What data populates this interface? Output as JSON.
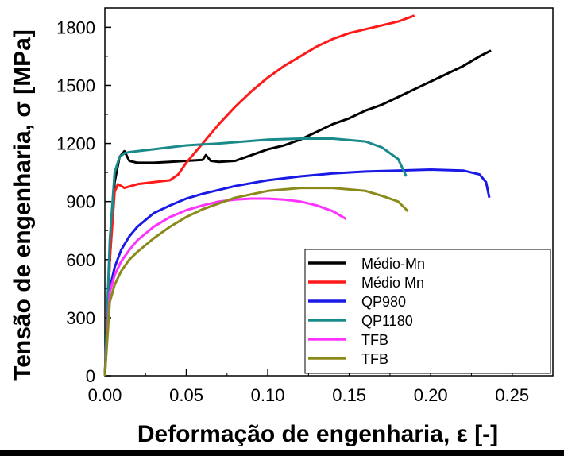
{
  "chart_data": {
    "type": "line",
    "title": "",
    "xlabel": "Deformação de engenharia, ε [-]",
    "ylabel": "Tensão de engenharia, σ [MPa]",
    "xlim": [
      0,
      0.275
    ],
    "ylim": [
      0,
      1900
    ],
    "xticks": [
      0.0,
      0.05,
      0.1,
      0.15,
      0.2,
      0.25
    ],
    "xtick_labels": [
      "0.00",
      "0.05",
      "0.10",
      "0.15",
      "0.20",
      "0.25"
    ],
    "yticks": [
      0,
      300,
      600,
      900,
      1200,
      1500,
      1800
    ],
    "ytick_labels": [
      "0",
      "300",
      "600",
      "900",
      "1200",
      "1500",
      "1800"
    ],
    "grid": false,
    "legend_position": "bottom-right",
    "series": [
      {
        "name": "Médio-Mn",
        "color": "#000000",
        "x": [
          0,
          0.003,
          0.006,
          0.009,
          0.012,
          0.015,
          0.02,
          0.03,
          0.04,
          0.05,
          0.06,
          0.062,
          0.065,
          0.07,
          0.08,
          0.09,
          0.1,
          0.11,
          0.12,
          0.13,
          0.14,
          0.15,
          0.16,
          0.17,
          0.18,
          0.19,
          0.2,
          0.21,
          0.22,
          0.23,
          0.237
        ],
        "y": [
          0,
          600,
          1000,
          1130,
          1160,
          1110,
          1100,
          1100,
          1105,
          1110,
          1115,
          1140,
          1110,
          1105,
          1110,
          1140,
          1170,
          1190,
          1220,
          1260,
          1300,
          1330,
          1370,
          1400,
          1440,
          1480,
          1520,
          1560,
          1600,
          1650,
          1680
        ]
      },
      {
        "name": "Médio Mn",
        "color": "#ff1a1a",
        "x": [
          0,
          0.003,
          0.006,
          0.008,
          0.012,
          0.02,
          0.03,
          0.04,
          0.045,
          0.05,
          0.06,
          0.07,
          0.08,
          0.09,
          0.1,
          0.11,
          0.12,
          0.13,
          0.14,
          0.15,
          0.16,
          0.17,
          0.18,
          0.19
        ],
        "y": [
          0,
          600,
          950,
          990,
          970,
          990,
          1000,
          1010,
          1040,
          1100,
          1200,
          1300,
          1390,
          1470,
          1540,
          1600,
          1650,
          1700,
          1740,
          1770,
          1790,
          1810,
          1830,
          1860
        ]
      },
      {
        "name": "QP980",
        "color": "#1a1ae6",
        "x": [
          0,
          0.003,
          0.006,
          0.01,
          0.015,
          0.02,
          0.03,
          0.04,
          0.05,
          0.06,
          0.08,
          0.1,
          0.12,
          0.14,
          0.16,
          0.18,
          0.2,
          0.22,
          0.23,
          0.234,
          0.236
        ],
        "y": [
          0,
          450,
          560,
          650,
          720,
          770,
          840,
          880,
          915,
          940,
          980,
          1010,
          1030,
          1045,
          1055,
          1060,
          1065,
          1060,
          1040,
          1000,
          920
        ]
      },
      {
        "name": "QP1180",
        "color": "#1a8a8a",
        "x": [
          0,
          0.003,
          0.006,
          0.009,
          0.012,
          0.015,
          0.02,
          0.03,
          0.05,
          0.07,
          0.1,
          0.12,
          0.14,
          0.16,
          0.17,
          0.18,
          0.185
        ],
        "y": [
          0,
          700,
          1050,
          1130,
          1150,
          1155,
          1160,
          1170,
          1190,
          1200,
          1220,
          1225,
          1225,
          1210,
          1180,
          1120,
          1030
        ]
      },
      {
        "name": "TFB",
        "color": "#ff33ff",
        "x": [
          0,
          0.003,
          0.006,
          0.01,
          0.015,
          0.02,
          0.03,
          0.04,
          0.05,
          0.06,
          0.07,
          0.08,
          0.09,
          0.1,
          0.11,
          0.12,
          0.13,
          0.14,
          0.148
        ],
        "y": [
          0,
          430,
          520,
          590,
          650,
          700,
          770,
          820,
          855,
          880,
          900,
          910,
          915,
          915,
          910,
          900,
          880,
          850,
          810
        ]
      },
      {
        "name": "TFB",
        "color": "#8a8a1a",
        "x": [
          0,
          0.003,
          0.006,
          0.01,
          0.015,
          0.02,
          0.03,
          0.04,
          0.05,
          0.06,
          0.07,
          0.08,
          0.1,
          0.12,
          0.14,
          0.16,
          0.17,
          0.18,
          0.186
        ],
        "y": [
          0,
          380,
          470,
          540,
          600,
          640,
          710,
          770,
          820,
          860,
          890,
          920,
          955,
          970,
          970,
          955,
          930,
          900,
          850
        ]
      }
    ]
  }
}
